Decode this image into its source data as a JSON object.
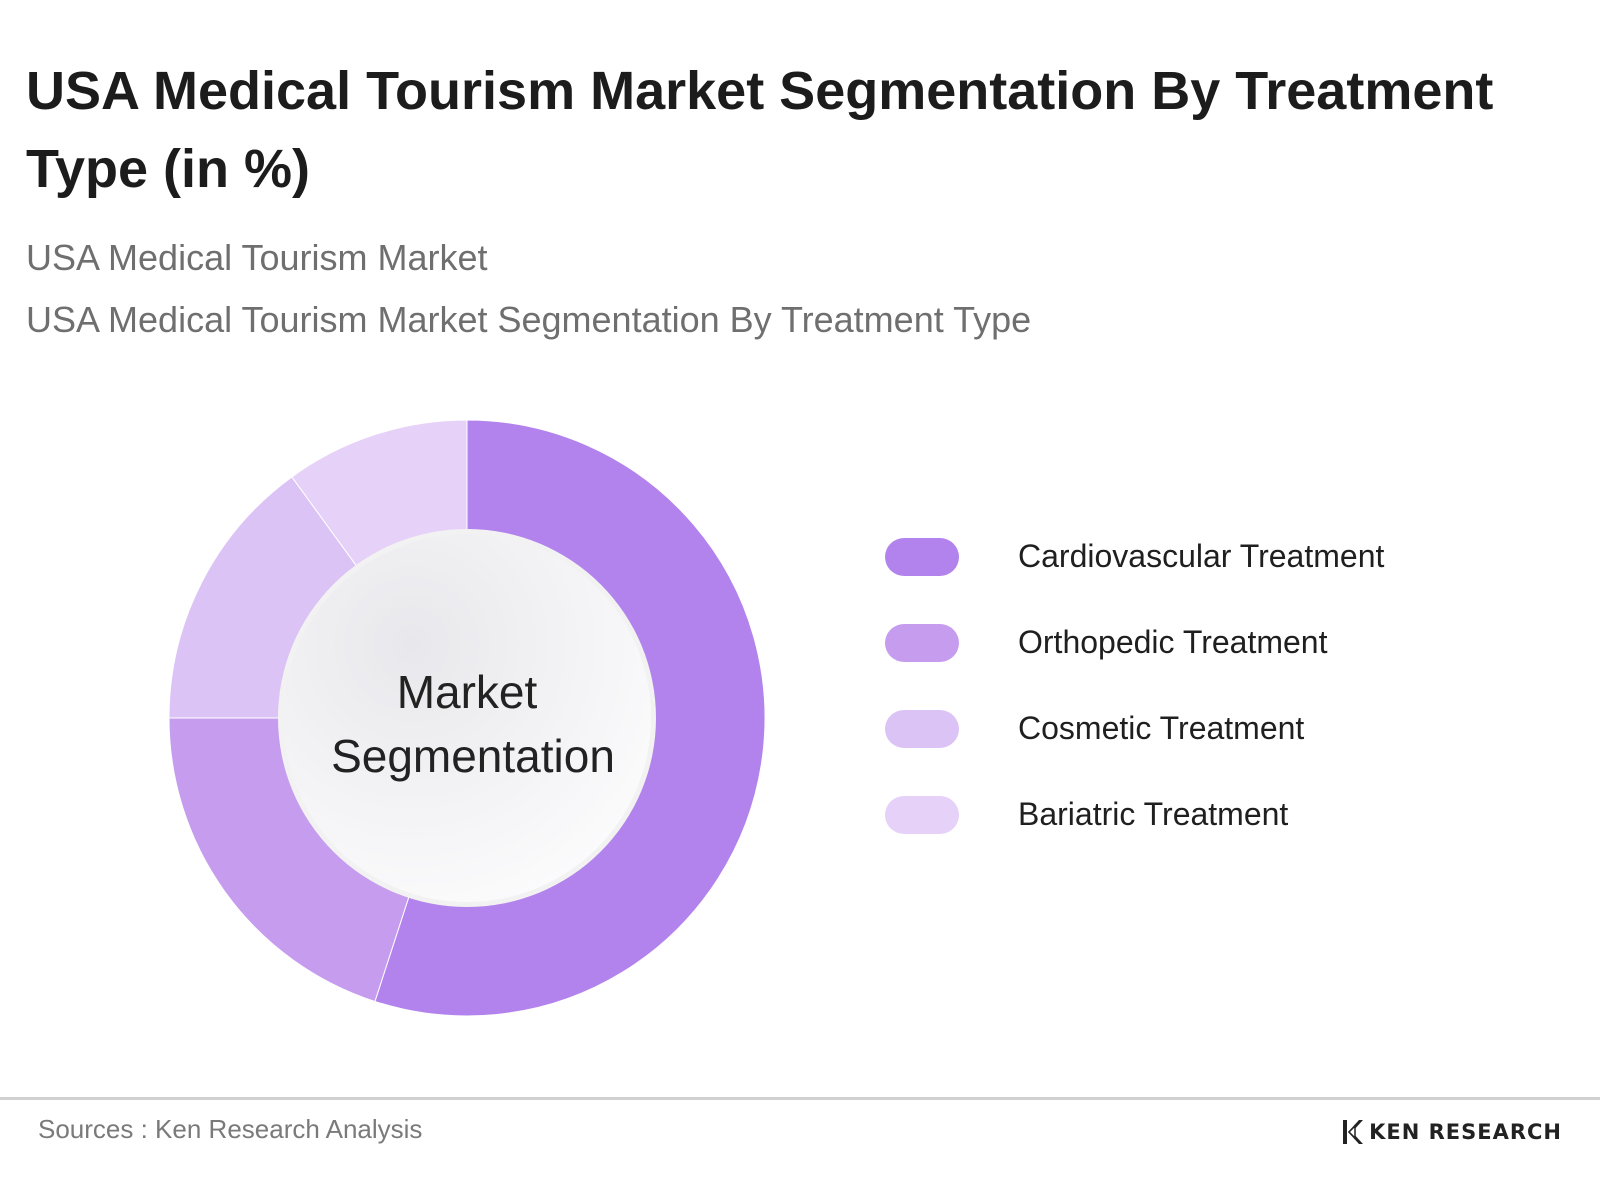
{
  "title": "USA Medical Tourism Market Segmentation By Treatment Type (in %)",
  "subtitles": [
    "USA Medical Tourism Market",
    "USA Medical Tourism Market Segmentation By Treatment Type"
  ],
  "chart_data": {
    "type": "pie",
    "variant": "donut",
    "center_label": [
      "Market",
      "Segmentation"
    ],
    "categories": [
      "Cardiovascular Treatment",
      "Orthopedic Treatment",
      "Cosmetic Treatment",
      "Bariatric Treatment"
    ],
    "values": [
      55,
      20,
      15,
      10
    ],
    "colors": [
      "#b383ed",
      "#c69cef",
      "#dcc3f6",
      "#e6d1f8"
    ],
    "legend_position": "right"
  },
  "footer": {
    "source": "Sources : Ken Research Analysis",
    "brand": "KEN RESEARCH"
  }
}
